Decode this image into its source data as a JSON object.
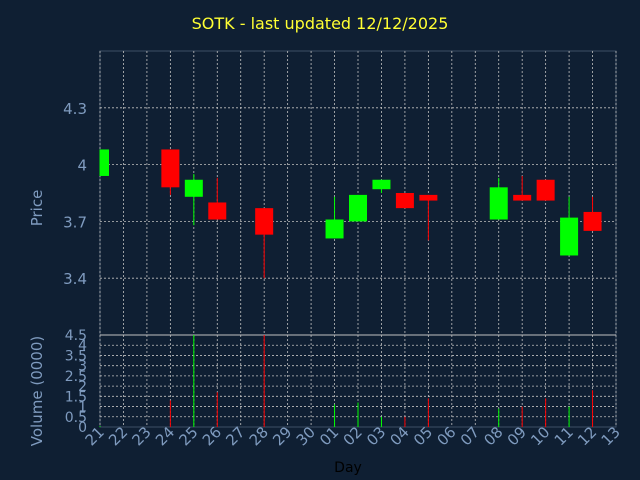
{
  "chart_data": [
    {
      "type": "candlestick",
      "title": "SOTK - last updated 12/12/2025",
      "ylabel": "Price",
      "ylim": [
        3.1,
        4.6
      ],
      "yticks": [
        "3.4",
        "3.7",
        "4",
        "4.3"
      ],
      "ytick_values": [
        3.4,
        3.7,
        4.0,
        4.3
      ],
      "grid": true,
      "colors": {
        "up": "#00ff00",
        "down": "#ff0000",
        "background": "#0f1f33",
        "grid": "#c0c0c0",
        "axis_text": "#7f9bbf",
        "title": "#ffff33"
      },
      "candles": [
        {
          "day": "21",
          "open": 3.94,
          "close": 4.08,
          "high": 4.08,
          "low": 3.94
        },
        {
          "day": "24",
          "open": 4.08,
          "close": 3.88,
          "high": 4.08,
          "low": 3.84
        },
        {
          "day": "25",
          "open": 3.83,
          "close": 3.92,
          "high": 3.95,
          "low": 3.68
        },
        {
          "day": "26",
          "open": 3.8,
          "close": 3.71,
          "high": 3.93,
          "low": 3.71
        },
        {
          "day": "28",
          "open": 3.77,
          "close": 3.63,
          "high": 3.77,
          "low": 3.4
        },
        {
          "day": "01",
          "open": 3.61,
          "close": 3.71,
          "high": 3.83,
          "low": 3.61
        },
        {
          "day": "02",
          "open": 3.7,
          "close": 3.84,
          "high": 3.84,
          "low": 3.7
        },
        {
          "day": "03",
          "open": 3.87,
          "close": 3.92,
          "high": 3.92,
          "low": 3.85
        },
        {
          "day": "04",
          "open": 3.85,
          "close": 3.77,
          "high": 3.85,
          "low": 3.77
        },
        {
          "day": "05",
          "open": 3.84,
          "close": 3.81,
          "high": 3.84,
          "low": 3.6
        },
        {
          "day": "08",
          "open": 3.71,
          "close": 3.88,
          "high": 3.93,
          "low": 3.71
        },
        {
          "day": "09",
          "open": 3.84,
          "close": 3.81,
          "high": 3.94,
          "low": 3.81
        },
        {
          "day": "10",
          "open": 3.92,
          "close": 3.81,
          "high": 3.92,
          "low": 3.81
        },
        {
          "day": "11",
          "open": 3.52,
          "close": 3.72,
          "high": 3.83,
          "low": 3.52
        },
        {
          "day": "12",
          "open": 3.75,
          "close": 3.65,
          "high": 3.83,
          "low": 3.65
        }
      ]
    },
    {
      "type": "bar",
      "ylabel": "Volume (0000)",
      "xlabel": "Day",
      "ylim": [
        0,
        4.5
      ],
      "yticks": [
        "0",
        "0.5",
        "1",
        "1.5",
        "2",
        "2.5",
        "3",
        "3.5",
        "4",
        "4.5"
      ],
      "ytick_values": [
        0,
        0.5,
        1,
        1.5,
        2,
        2.5,
        3,
        3.5,
        4,
        4.5
      ],
      "categories": [
        "21",
        "22",
        "23",
        "24",
        "25",
        "26",
        "27",
        "28",
        "29",
        "30",
        "01",
        "02",
        "03",
        "04",
        "05",
        "06",
        "07",
        "08",
        "09",
        "10",
        "11",
        "12",
        "13"
      ],
      "values": [
        {
          "day": "21",
          "volume": 0.05,
          "dir": "up"
        },
        {
          "day": "24",
          "volume": 1.3,
          "dir": "down"
        },
        {
          "day": "25",
          "volume": 4.5,
          "dir": "up"
        },
        {
          "day": "26",
          "volume": 1.7,
          "dir": "down"
        },
        {
          "day": "28",
          "volume": 4.9,
          "dir": "down"
        },
        {
          "day": "01",
          "volume": 1.1,
          "dir": "up"
        },
        {
          "day": "02",
          "volume": 1.2,
          "dir": "up"
        },
        {
          "day": "03",
          "volume": 0.5,
          "dir": "up"
        },
        {
          "day": "04",
          "volume": 0.5,
          "dir": "down"
        },
        {
          "day": "05",
          "volume": 1.4,
          "dir": "down"
        },
        {
          "day": "08",
          "volume": 0.9,
          "dir": "up"
        },
        {
          "day": "09",
          "volume": 1.0,
          "dir": "down"
        },
        {
          "day": "10",
          "volume": 1.4,
          "dir": "down"
        },
        {
          "day": "11",
          "volume": 1.0,
          "dir": "up"
        },
        {
          "day": "12",
          "volume": 1.8,
          "dir": "down"
        }
      ]
    }
  ]
}
